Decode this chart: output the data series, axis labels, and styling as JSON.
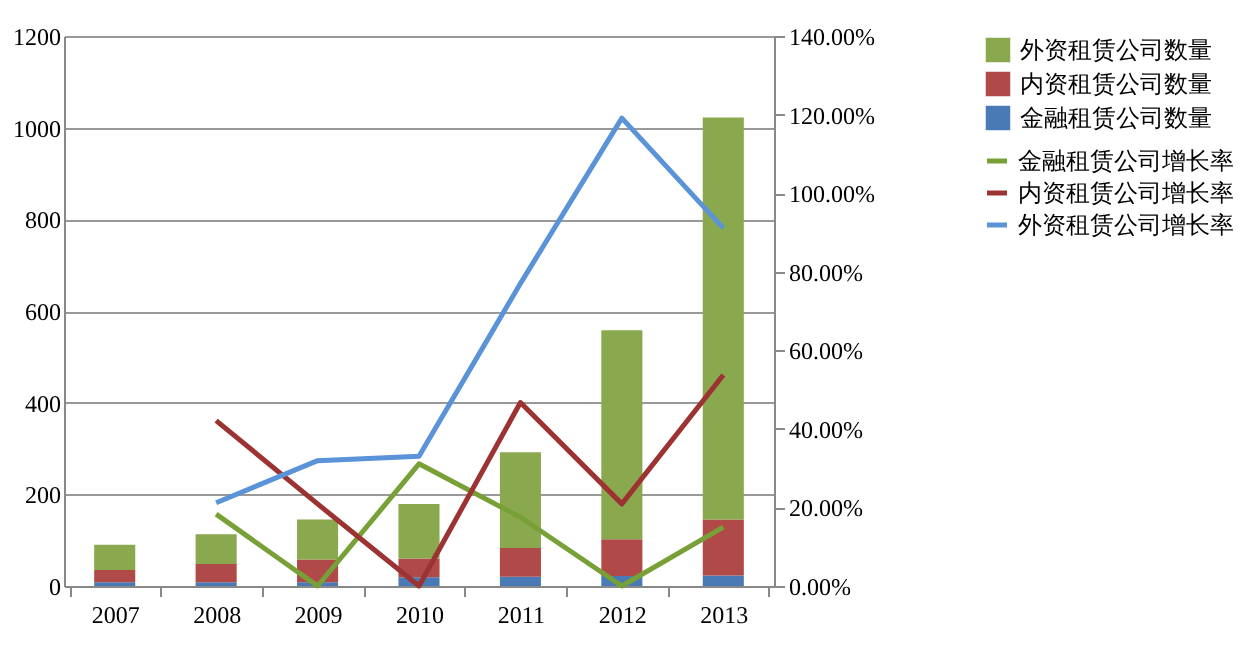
{
  "chart_data": {
    "type": "bar",
    "stacked": true,
    "categories": [
      "2007",
      "2008",
      "2009",
      "2010",
      "2011",
      "2012",
      "2013"
    ],
    "series": [
      {
        "name": "金融租赁公司数量",
        "color": "#4a7ab5",
        "values": [
          8,
          8,
          8,
          19,
          20,
          22,
          23
        ]
      },
      {
        "name": "内资租赁公司数量",
        "color": "#b04a48",
        "values": [
          27,
          40,
          50,
          41,
          63,
          80,
          122
        ]
      },
      {
        "name": "外资租赁公司数量",
        "color": "#8aa84e",
        "values": [
          55,
          65,
          87,
          119,
          209,
          456,
          877
        ]
      },
      {
        "name": "金融租赁公司增长率",
        "type": "line",
        "axis": "y2",
        "color": "#77a037",
        "values": [
          null,
          18.3,
          0,
          31.1,
          17.5,
          0,
          15
        ]
      },
      {
        "name": "内资租赁公司增长率",
        "type": "line",
        "axis": "y2",
        "color": "#9c3232",
        "values": [
          null,
          42.1,
          20.9,
          0,
          46.7,
          20.9,
          53.7
        ]
      },
      {
        "name": "外资租赁公司增长率",
        "type": "line",
        "axis": "y2",
        "color": "#5b93d8",
        "values": [
          null,
          21.2,
          31.9,
          33,
          77,
          119.1,
          91.1
        ]
      }
    ],
    "ylim": [
      0,
      1200
    ],
    "yticks": [
      0,
      200,
      400,
      600,
      800,
      1000,
      1200
    ],
    "y2lim": [
      0,
      140
    ],
    "y2ticks": [
      {
        "value": 0,
        "label": "0.00%"
      },
      {
        "value": 20,
        "label": "20.00%"
      },
      {
        "value": 40,
        "label": "40.00%"
      },
      {
        "value": 60,
        "label": "60.00%"
      },
      {
        "value": 80,
        "label": "80.00%"
      },
      {
        "value": 100,
        "label": "100.00%"
      },
      {
        "value": 120,
        "label": "120.00%"
      },
      {
        "value": 140,
        "label": "140.00%"
      }
    ],
    "grid": "y",
    "legend": "right",
    "marker": "none",
    "line_style": "solid"
  }
}
